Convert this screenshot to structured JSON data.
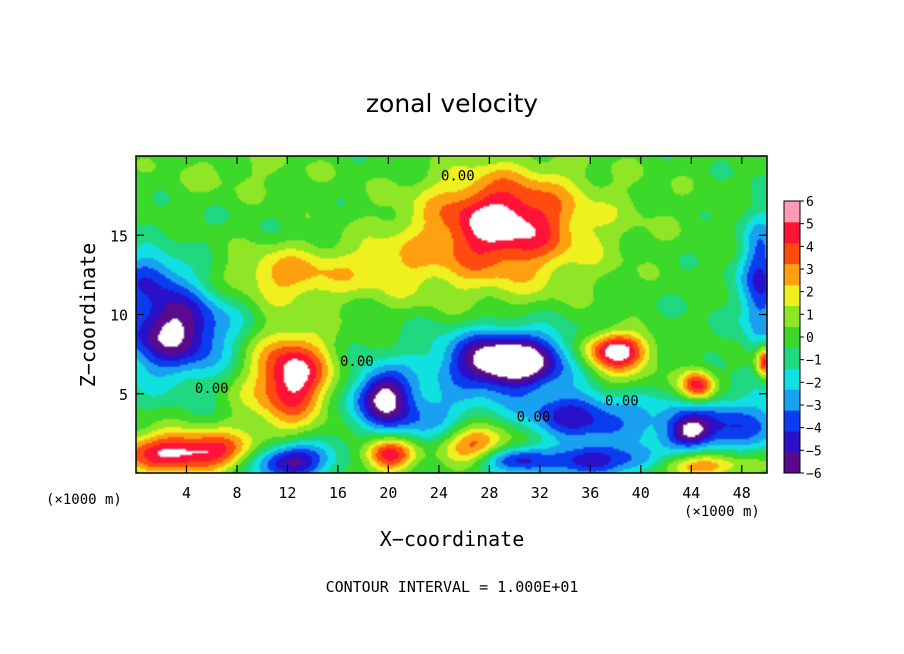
{
  "chart_data": {
    "type": "heatmap",
    "title": "zonal velocity",
    "xlabel": "X−coordinate",
    "ylabel": "Z−coordinate",
    "x_unit_left": "(×1000 m)",
    "x_unit_right": "(×1000 m)",
    "xlim": [
      0,
      50
    ],
    "ylim": [
      0,
      20
    ],
    "x_ticks": [
      4,
      8,
      12,
      16,
      20,
      24,
      28,
      32,
      36,
      40,
      44,
      48
    ],
    "x_tick_labels": [
      "4",
      "8",
      "12",
      "16",
      "20",
      "24",
      "28",
      "32",
      "36",
      "40",
      "44",
      "48"
    ],
    "y_ticks": [
      5,
      10,
      15
    ],
    "y_tick_labels": [
      "5",
      "10",
      "15"
    ],
    "colorbar": {
      "min": -6,
      "max": 6,
      "ticks": [
        6,
        5,
        4,
        3,
        2,
        1,
        0,
        -1,
        -2,
        -3,
        -4,
        -5,
        -6
      ],
      "labels": [
        "6",
        "5",
        "4",
        "3",
        "2",
        "1",
        "0",
        "−1",
        "−2",
        "−3",
        "−4",
        "−5",
        "−6"
      ],
      "colors": [
        "#5a0a8c",
        "#2a10c8",
        "#0a3cf0",
        "#1aa0f0",
        "#10e0e0",
        "#20d880",
        "#3cd82a",
        "#8ee626",
        "#eef020",
        "#ffa010",
        "#ff4a10",
        "#ff1438",
        "#ff9ab4"
      ]
    },
    "contour_labels": [
      {
        "text": "0.00",
        "x": 25.5,
        "y": 18.7
      },
      {
        "text": "0.00",
        "x": 17.5,
        "y": 7.0
      },
      {
        "text": "0.00",
        "x": 6.0,
        "y": 5.3
      },
      {
        "text": "0.00",
        "x": 31.5,
        "y": 3.5
      },
      {
        "text": "0.00",
        "x": 38.5,
        "y": 4.5
      }
    ],
    "footer": "CONTOUR INTERVAL = 1.000E+01",
    "features": [
      {
        "x": 29,
        "y": 16,
        "v": 4.8,
        "sx": 5.5,
        "sy": 3.0
      },
      {
        "x": 28,
        "y": 14,
        "v": 2.0,
        "sx": 9.0,
        "sy": 4.5
      },
      {
        "x": 12,
        "y": 12.5,
        "v": 3.2,
        "sx": 5.0,
        "sy": 1.8
      },
      {
        "x": 20,
        "y": 13,
        "v": 1.5,
        "sx": 4.0,
        "sy": 2.0
      },
      {
        "x": 3,
        "y": 9,
        "v": -6.5,
        "sx": 4.2,
        "sy": 2.8
      },
      {
        "x": 1,
        "y": 12.5,
        "v": -3.0,
        "sx": 2.5,
        "sy": 1.5
      },
      {
        "x": 12.5,
        "y": 6.3,
        "v": 5.0,
        "sx": 2.8,
        "sy": 2.6
      },
      {
        "x": 11.5,
        "y": 5.0,
        "v": 2.0,
        "sx": 4.0,
        "sy": 3.5
      },
      {
        "x": 29.5,
        "y": 7.0,
        "v": -7.0,
        "sx": 4.2,
        "sy": 1.7
      },
      {
        "x": 29,
        "y": 7.5,
        "v": -2.0,
        "sx": 7.5,
        "sy": 2.4
      },
      {
        "x": 38,
        "y": 7.8,
        "v": 6.0,
        "sx": 2.6,
        "sy": 1.1
      },
      {
        "x": 38,
        "y": 6.5,
        "v": 2.0,
        "sx": 3.0,
        "sy": 1.8
      },
      {
        "x": 44.5,
        "y": 5.5,
        "v": 6.0,
        "sx": 1.4,
        "sy": 1.0
      },
      {
        "x": 46,
        "y": 3.0,
        "v": -4.0,
        "sx": 6.0,
        "sy": 1.8
      },
      {
        "x": 44,
        "y": 2.6,
        "v": -3.5,
        "sx": 1.6,
        "sy": 0.9
      },
      {
        "x": 19.5,
        "y": 5.0,
        "v": -5.5,
        "sx": 2.2,
        "sy": 1.6
      },
      {
        "x": 35,
        "y": 3.6,
        "v": -4.5,
        "sx": 4.5,
        "sy": 1.6
      },
      {
        "x": 22,
        "y": 3.5,
        "v": -3.0,
        "sx": 5.0,
        "sy": 1.8
      },
      {
        "x": 4,
        "y": 1.3,
        "v": 6.5,
        "sx": 6.0,
        "sy": 1.3
      },
      {
        "x": 12,
        "y": 0.8,
        "v": -7.0,
        "sx": 3.2,
        "sy": 1.2
      },
      {
        "x": 20,
        "y": 1.2,
        "v": 6.0,
        "sx": 2.0,
        "sy": 1.1
      },
      {
        "x": 27,
        "y": 1.8,
        "v": 5.0,
        "sx": 3.0,
        "sy": 1.3
      },
      {
        "x": 30,
        "y": 0.8,
        "v": -5.0,
        "sx": 3.0,
        "sy": 0.9
      },
      {
        "x": 36,
        "y": 0.8,
        "v": -5.0,
        "sx": 2.5,
        "sy": 1.0
      },
      {
        "x": 40,
        "y": 0.7,
        "v": -3.0,
        "sx": 2.0,
        "sy": 0.9
      },
      {
        "x": 45,
        "y": 0.5,
        "v": 4.0,
        "sx": 4.0,
        "sy": 0.8
      },
      {
        "x": 49.5,
        "y": 12,
        "v": -4.5,
        "sx": 1.5,
        "sy": 4.0
      },
      {
        "x": 49.8,
        "y": 7,
        "v": 6.0,
        "sx": 0.7,
        "sy": 1.0
      },
      {
        "x": 8,
        "y": 19,
        "v": 1.0,
        "sx": 8.0,
        "sy": 2.0
      },
      {
        "x": 38,
        "y": 17,
        "v": 0.6,
        "sx": 10.0,
        "sy": 4.0
      }
    ]
  }
}
